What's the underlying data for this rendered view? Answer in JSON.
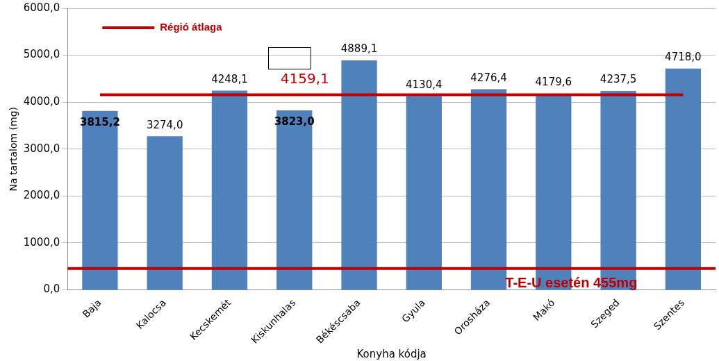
{
  "chart_data": {
    "type": "bar",
    "xlabel": "Konyha kódja",
    "ylabel": "Na tartalom (mg)",
    "categories": [
      "Baja",
      "Kalocsa",
      "Kecskemét",
      "Kiskunhalas",
      "Békéscsaba",
      "Gyula",
      "Orosháza",
      "Makó",
      "Szeged",
      "Szentes"
    ],
    "series": [
      {
        "color": "#4f81bd",
        "values": [
          3815.2,
          3274.0,
          4248.1,
          3823.0,
          4889.1,
          4130.4,
          4276.4,
          4179.6,
          4237.5,
          4718.0
        ],
        "value_labels": [
          "3815,2",
          "3274,0",
          "4248,1",
          "3823,0",
          "4889,1",
          "4130,4",
          "4276,4",
          "4179,6",
          "4237,5",
          "4718,0"
        ]
      },
      {
        "type": "line",
        "name": "Régió átlaga",
        "color": "#c00000",
        "values": [
          4159.1,
          4159.1,
          4159.1,
          4159.1,
          4159.1,
          4159.1,
          4159.1,
          4159.1,
          4159.1,
          4159.1
        ]
      }
    ],
    "marker": "none",
    "grid": "y",
    "legend": "top left",
    "ylim": [
      0,
      6000
    ],
    "yticks": [
      {
        "value": 0,
        "label": "0,0"
      },
      {
        "value": 1000,
        "label": "1000,0"
      },
      {
        "value": 2000,
        "label": "2000,0"
      },
      {
        "value": 3000,
        "label": "3000,0"
      },
      {
        "value": 4000,
        "label": "4000,0"
      },
      {
        "value": 5000,
        "label": "5000,0"
      },
      {
        "value": 6000,
        "label": "6000,0"
      }
    ],
    "ref_lines": [
      {
        "axis": "y",
        "value": 455,
        "label": "T-E-U esetén 455mg",
        "color": "#c00000"
      }
    ],
    "annotations": [
      {
        "text": "4159,1",
        "x": "Kiskunhalas",
        "y": 4159.1
      }
    ]
  }
}
